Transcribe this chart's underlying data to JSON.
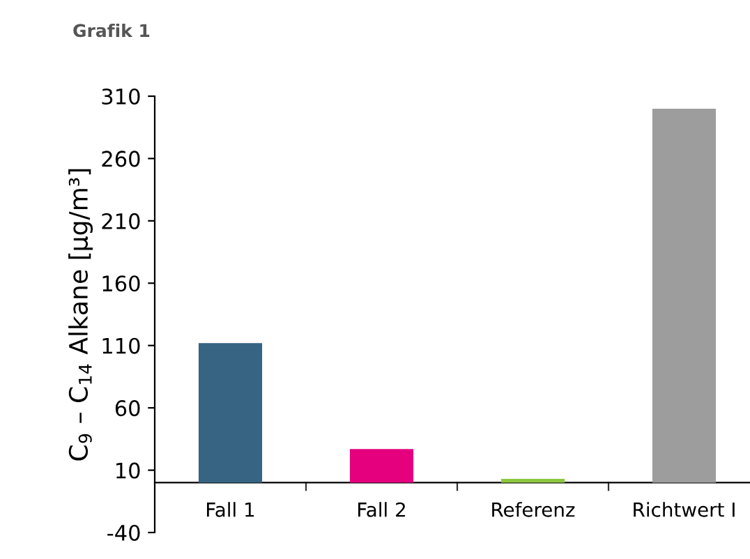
{
  "chart_data": {
    "type": "bar",
    "title": "Grafik 1",
    "ylabel": "C$_{9}$ – C$_{14}$ Alkane [µg/m³]",
    "categories": [
      "Fall 1",
      "Fall 2",
      "Referenz",
      "Richtwert I"
    ],
    "values": [
      112,
      27,
      3,
      300
    ],
    "colors": [
      "#376482",
      "#e5007d",
      "#8dc63f",
      "#9d9d9d"
    ],
    "ylim": [
      -40,
      310
    ],
    "yticks": [
      -40,
      10,
      60,
      110,
      160,
      210,
      260,
      310
    ],
    "grid": false,
    "legend": false
  }
}
